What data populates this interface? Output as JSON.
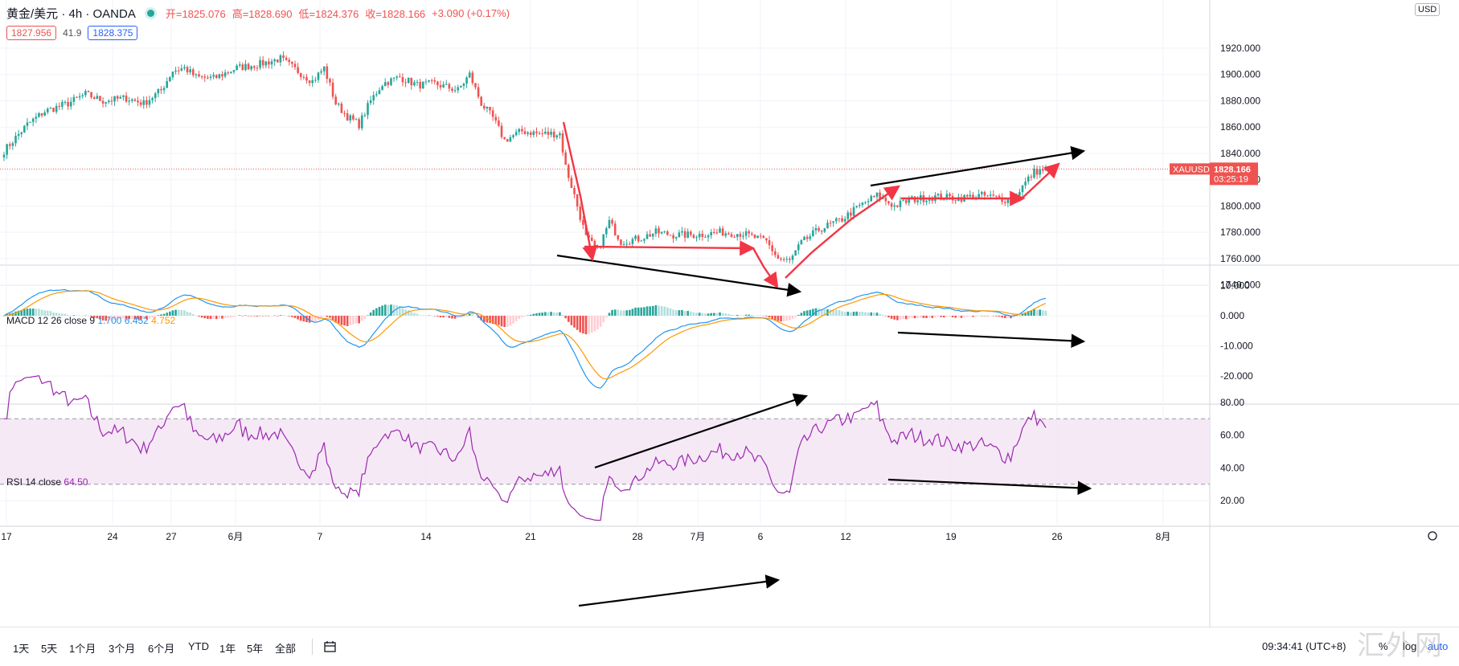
{
  "header": {
    "symbol": "黄金/美元 · 4h · OANDA",
    "open": "开=1825.076",
    "high": "高=1828.690",
    "low": "低=1824.376",
    "close": "收=1828.166",
    "change": "+3.090 (+0.17%)",
    "sell_price": "1827.956",
    "spread": "41.9",
    "buy_price": "1828.375",
    "currency": "USD"
  },
  "indicators": {
    "macd_label": "MACD 12 26 close 9",
    "macd_val1": "1.700",
    "macd_val2": "6.452",
    "macd_val3": "4.752",
    "rsi_label": "RSI 14 close",
    "rsi_val": "64.50"
  },
  "price_tag": {
    "symbol": "XAUUSD",
    "price": "1828.166",
    "countdown": "03:25:19"
  },
  "toolbar": {
    "ranges": [
      "1天",
      "5天",
      "1个月",
      "3个月",
      "6个月",
      "YTD",
      "1年",
      "5年",
      "全部"
    ],
    "clock": "09:34:41 (UTC+8)",
    "percent": "%",
    "log": "log",
    "auto": "auto"
  },
  "watermark": "汇外网",
  "colors": {
    "up": "#26a69a",
    "down": "#ef5350",
    "macd": "#2196f3",
    "signal": "#ff9800",
    "rsi": "#9c27b0",
    "annot_red": "#f23645",
    "annot_black": "#000000"
  },
  "chart_data": [
    {
      "type": "candlestick",
      "title": "黄金/美元 · 4h · OANDA",
      "ylim": [
        1730,
        1925
      ],
      "y_ticks": [
        "1920.000",
        "1900.000",
        "1880.000",
        "1860.000",
        "1840.000",
        "1820.000",
        "1800.000",
        "1780.000",
        "1760.000",
        "1740.000"
      ],
      "x_ticks": [
        "17",
        "24",
        "27",
        "6月",
        "7",
        "14",
        "21",
        "28",
        "7月",
        "6",
        "12",
        "19",
        "26",
        "8月"
      ],
      "last_price": 1828.166,
      "close_anchors": [
        [
          0,
          1842
        ],
        [
          8,
          1862
        ],
        [
          14,
          1872
        ],
        [
          22,
          1878
        ],
        [
          28,
          1885
        ],
        [
          34,
          1880
        ],
        [
          42,
          1882
        ],
        [
          48,
          1878
        ],
        [
          54,
          1888
        ],
        [
          58,
          1903
        ],
        [
          62,
          1905
        ],
        [
          66,
          1898
        ],
        [
          72,
          1897
        ],
        [
          80,
          1905
        ],
        [
          88,
          1908
        ],
        [
          95,
          1912
        ],
        [
          100,
          1904
        ],
        [
          106,
          1895
        ],
        [
          110,
          1905
        ],
        [
          114,
          1878
        ],
        [
          118,
          1868
        ],
        [
          122,
          1862
        ],
        [
          126,
          1880
        ],
        [
          130,
          1893
        ],
        [
          136,
          1898
        ],
        [
          142,
          1892
        ],
        [
          148,
          1893
        ],
        [
          156,
          1888
        ],
        [
          160,
          1900
        ],
        [
          164,
          1878
        ],
        [
          168,
          1867
        ],
        [
          172,
          1850
        ],
        [
          178,
          1857
        ],
        [
          184,
          1855
        ],
        [
          190,
          1855
        ],
        [
          191,
          1855
        ],
        [
          193,
          1830
        ],
        [
          196,
          1808
        ],
        [
          200,
          1776
        ],
        [
          204,
          1766
        ],
        [
          208,
          1788
        ],
        [
          212,
          1773
        ],
        [
          218,
          1775
        ],
        [
          224,
          1780
        ],
        [
          230,
          1778
        ],
        [
          238,
          1778
        ],
        [
          246,
          1780
        ],
        [
          254,
          1779
        ],
        [
          262,
          1773
        ],
        [
          266,
          1760
        ],
        [
          270,
          1758
        ],
        [
          274,
          1772
        ],
        [
          280,
          1782
        ],
        [
          288,
          1790
        ],
        [
          294,
          1800
        ],
        [
          300,
          1808
        ],
        [
          306,
          1800
        ],
        [
          312,
          1805
        ],
        [
          320,
          1807
        ],
        [
          328,
          1806
        ],
        [
          336,
          1808
        ],
        [
          342,
          1806
        ],
        [
          346,
          1804
        ],
        [
          350,
          1815
        ],
        [
          354,
          1826
        ],
        [
          358,
          1828
        ]
      ],
      "candle_count": 359
    },
    {
      "type": "macd",
      "title": "MACD 12 26 close 9",
      "values": {
        "macd": 1.7,
        "signal": 6.452,
        "histogram": 4.752
      },
      "y_ticks": [
        "10.000",
        "0.000",
        "-10.000",
        "-20.000"
      ],
      "ylim": [
        -29,
        12
      ]
    },
    {
      "type": "line",
      "title": "RSI 14 close",
      "last": 64.5,
      "bands": [
        30,
        70
      ],
      "y_ticks": [
        "80.00",
        "60.00",
        "40.00",
        "20.00"
      ],
      "ylim": [
        13,
        83
      ]
    }
  ]
}
